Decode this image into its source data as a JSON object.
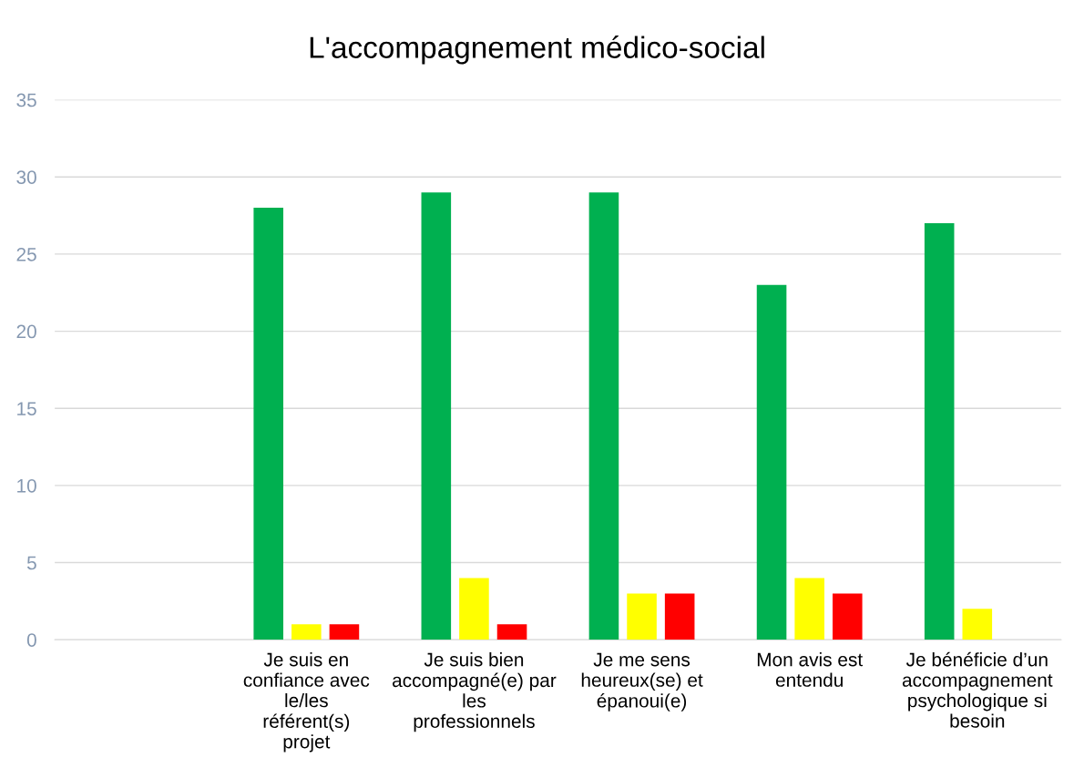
{
  "chart_data": {
    "type": "bar",
    "title": "L'accompagnement médico-social",
    "categories": [
      null,
      "Je suis en confiance avec le/les référent(s) projet",
      "Je suis bien accompagné(e) par les professionnels",
      "Je me sens heureux(se) et épanoui(e)",
      "Mon avis est entendu",
      "Je bénéficie d’un accompagnement psychologique si besoin"
    ],
    "series": [
      {
        "color": "#00b050",
        "values": [
          null,
          28,
          29,
          29,
          23,
          27
        ]
      },
      {
        "color": "#ffff00",
        "values": [
          null,
          1,
          4,
          3,
          4,
          2
        ]
      },
      {
        "color": "#ff0000",
        "values": [
          null,
          1,
          1,
          3,
          3,
          null
        ]
      }
    ],
    "ylim": [
      0,
      35
    ],
    "yticks": [
      0,
      5,
      10,
      15,
      20,
      25,
      30,
      35
    ],
    "grid": "y",
    "legend": false
  }
}
